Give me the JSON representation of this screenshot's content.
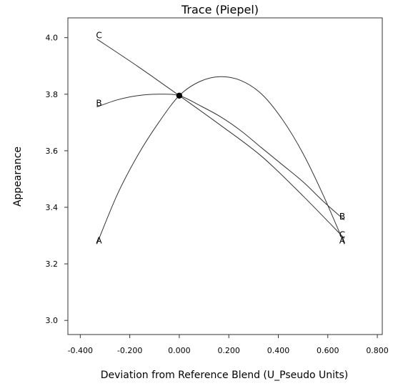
{
  "chart_data": {
    "type": "line",
    "title": "Trace (Piepel)",
    "xlabel": "Deviation from Reference Blend (U_Pseudo Units)",
    "ylabel": "Appearance",
    "xlim": [
      -0.45,
      0.82
    ],
    "ylim": [
      2.95,
      4.07
    ],
    "x_ticks": [
      -0.4,
      -0.2,
      0.0,
      0.2,
      0.4,
      0.6,
      0.8
    ],
    "x_tick_labels": [
      "-0.400",
      "-0.200",
      "0.000",
      "0.200",
      "0.400",
      "0.600",
      "0.800"
    ],
    "y_ticks": [
      3.0,
      3.2,
      3.4,
      3.6,
      3.8,
      4.0
    ],
    "y_tick_labels": [
      "3.0",
      "3.2",
      "3.4",
      "3.6",
      "3.8",
      "4.0"
    ],
    "grid": false,
    "reference_point": {
      "x": 0.0,
      "y": 3.795
    },
    "series": [
      {
        "name": "A",
        "x": [
          -0.333,
          -0.25,
          -0.167,
          -0.083,
          0.0,
          0.083,
          0.167,
          0.25,
          0.333,
          0.417,
          0.5,
          0.583,
          0.667
        ],
        "y": [
          3.27,
          3.446,
          3.585,
          3.7,
          3.795,
          3.845,
          3.862,
          3.848,
          3.8,
          3.71,
          3.59,
          3.44,
          3.27
        ],
        "label_text": "A"
      },
      {
        "name": "B",
        "x": [
          -0.333,
          -0.25,
          -0.167,
          -0.083,
          0.0,
          0.083,
          0.167,
          0.25,
          0.333,
          0.417,
          0.5,
          0.583,
          0.667
        ],
        "y": [
          3.755,
          3.78,
          3.795,
          3.8,
          3.795,
          3.76,
          3.72,
          3.67,
          3.61,
          3.55,
          3.49,
          3.42,
          3.355
        ],
        "label_text": "B"
      },
      {
        "name": "C",
        "x": [
          -0.333,
          -0.167,
          0.0,
          0.167,
          0.333,
          0.5,
          0.667
        ],
        "y": [
          3.995,
          3.898,
          3.795,
          3.69,
          3.58,
          3.44,
          3.29
        ],
        "label_text": "C"
      }
    ]
  }
}
